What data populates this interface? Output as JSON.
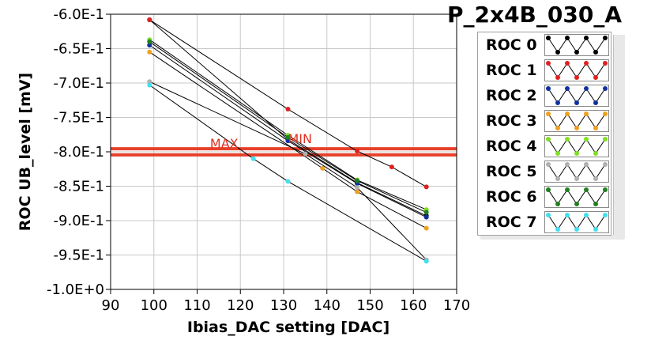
{
  "title": "P_2x4B_030_A",
  "chart_data": {
    "type": "line",
    "xlabel": "Ibias_DAC setting [DAC]",
    "ylabel": "ROC UB_level [mV]",
    "xlim": [
      90,
      170
    ],
    "ylim": [
      -1.0,
      -0.6
    ],
    "xticks": [
      90,
      100,
      110,
      120,
      130,
      140,
      150,
      160,
      170
    ],
    "yticks": [
      -0.6,
      -0.65,
      -0.7,
      -0.75,
      -0.8,
      -0.85,
      -0.9,
      -0.95,
      -1.0
    ],
    "ytick_labels": [
      "-6.0E-1",
      "-6.5E-1",
      "-7.0E-1",
      "-7.5E-1",
      "-8.0E-1",
      "-8.5E-1",
      "-9.0E-1",
      "-9.5E-1",
      "-1.0E+0"
    ],
    "grid": true,
    "annotations": [
      {
        "text": "MAX",
        "x": 113,
        "y": -0.7945,
        "color": "#e03020"
      },
      {
        "text": "MIN",
        "x": 131,
        "y": -0.7875,
        "color": "#e03020"
      }
    ],
    "hlines": [
      {
        "y": -0.7955,
        "color": "#e8402a"
      },
      {
        "y": -0.8045,
        "color": "#e8402a"
      }
    ],
    "series": [
      {
        "name": "ROC 0",
        "color": "#000000",
        "points": [
          [
            99,
            -0.608
          ],
          [
            131,
            -0.782
          ],
          [
            147,
            -0.845
          ],
          [
            163,
            -0.893
          ]
        ]
      },
      {
        "name": "ROC 1",
        "color": "#e02020",
        "points": [
          [
            99,
            -0.608
          ],
          [
            131,
            -0.738
          ],
          [
            147,
            -0.799
          ],
          [
            155,
            -0.822
          ],
          [
            163,
            -0.851
          ]
        ]
      },
      {
        "name": "ROC 2",
        "color": "#1030a0",
        "points": [
          [
            99,
            -0.645
          ],
          [
            131,
            -0.784
          ],
          [
            147,
            -0.846
          ],
          [
            163,
            -0.895
          ]
        ]
      },
      {
        "name": "ROC 3",
        "color": "#f0a020",
        "points": [
          [
            99,
            -0.655
          ],
          [
            139,
            -0.824
          ],
          [
            147,
            -0.858
          ],
          [
            163,
            -0.911
          ]
        ]
      },
      {
        "name": "ROC 4",
        "color": "#80e020",
        "points": [
          [
            99,
            -0.637
          ],
          [
            131,
            -0.776
          ],
          [
            147,
            -0.841
          ],
          [
            163,
            -0.884
          ]
        ]
      },
      {
        "name": "ROC 5",
        "color": "#b0b0b0",
        "points": [
          [
            99,
            -0.698
          ],
          [
            135,
            -0.803
          ],
          [
            147,
            -0.852
          ],
          [
            163,
            -0.957
          ]
        ]
      },
      {
        "name": "ROC 6",
        "color": "#208020",
        "points": [
          [
            99,
            -0.64
          ],
          [
            131,
            -0.779
          ],
          [
            147,
            -0.842
          ],
          [
            163,
            -0.888
          ]
        ]
      },
      {
        "name": "ROC 7",
        "color": "#40e0f0",
        "points": [
          [
            99,
            -0.703
          ],
          [
            123,
            -0.81
          ],
          [
            131,
            -0.843
          ],
          [
            163,
            -0.959
          ]
        ]
      }
    ]
  },
  "legend": {
    "items": [
      {
        "label": "ROC 0",
        "color": "#000000"
      },
      {
        "label": "ROC 1",
        "color": "#e02020"
      },
      {
        "label": "ROC 2",
        "color": "#1030a0"
      },
      {
        "label": "ROC 3",
        "color": "#f0a020"
      },
      {
        "label": "ROC 4",
        "color": "#80e020"
      },
      {
        "label": "ROC 5",
        "color": "#b0b0b0"
      },
      {
        "label": "ROC 6",
        "color": "#208020"
      },
      {
        "label": "ROC 7",
        "color": "#40e0f0"
      }
    ]
  }
}
